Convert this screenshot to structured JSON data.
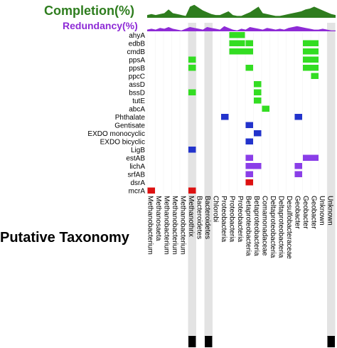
{
  "chart_data": {
    "type": "heatmap",
    "title_completion": "Completion(%)",
    "title_redundancy": "Redundancy(%)",
    "xlabel": "Putative Taxonomy",
    "genes": [
      "ahyA",
      "edbB",
      "cmdB",
      "ppsA",
      "ppsB",
      "ppcC",
      "assD",
      "bssD",
      "tutE",
      "abcA",
      "Phthalate",
      "Gentisate",
      "EXDO monocyclic",
      "EXDO bicyclic",
      "LigB",
      "estAB",
      "lichA",
      "srfAB",
      "dsrA",
      "mcrA"
    ],
    "taxa": [
      "Methanobacterium",
      "Methanosaeta",
      "Methanobacterium",
      "Methanobacterium",
      "Methanobacterium",
      "Methanothrix",
      "Bacteroidetes",
      "Bacteroidetes",
      "Chlorobi",
      "Proteobacteria",
      "Proteobacteria",
      "Proteobacteria",
      "Betaproteobacteria",
      "Betaproteobacteria",
      "Comamonadaceae",
      "Deltaproteobacteria",
      "Deltaproteobacteria",
      "Desulfobacteraceae",
      "Geobacter",
      "Geobacter",
      "Geobacter",
      "Unknown",
      "Unknown"
    ],
    "highlighted_taxa": [
      5,
      7,
      22
    ],
    "colors": {
      "completion": "#2e7d1e",
      "redundancy": "#8e2bd6",
      "green": "#33dd22",
      "blue": "#2233cc",
      "purple": "#8a3ee8",
      "red": "#dd1111",
      "highlight": "#e3e3e3"
    },
    "completion": [
      3,
      4,
      3,
      4,
      5,
      9,
      5,
      4,
      3,
      2,
      12,
      14,
      11,
      8,
      6,
      4,
      3,
      3,
      5,
      7,
      3,
      2,
      2,
      4,
      6,
      9,
      12,
      5,
      4,
      3,
      2,
      2,
      3,
      4,
      5,
      6,
      7,
      9,
      10,
      12,
      10,
      8,
      6,
      4,
      3
    ],
    "redundancy": [
      2,
      3,
      2,
      4,
      3,
      5,
      3,
      2,
      1,
      3,
      5,
      4,
      3,
      2,
      5,
      4,
      3,
      2,
      6,
      4,
      2,
      1,
      3,
      2,
      5,
      4,
      3,
      2,
      4,
      3,
      2,
      3,
      2,
      4,
      5,
      6,
      5,
      4,
      3,
      2,
      2,
      3,
      2,
      1,
      1
    ],
    "cells": [
      {
        "gene": 0,
        "taxon": 10,
        "span": 2,
        "color": "green"
      },
      {
        "gene": 1,
        "taxon": 10,
        "span": 2,
        "color": "green"
      },
      {
        "gene": 1,
        "taxon": 12,
        "span": 1,
        "color": "green"
      },
      {
        "gene": 1,
        "taxon": 19,
        "span": 2,
        "color": "green"
      },
      {
        "gene": 2,
        "taxon": 10,
        "span": 3,
        "color": "green"
      },
      {
        "gene": 2,
        "taxon": 19,
        "span": 2,
        "color": "green"
      },
      {
        "gene": 3,
        "taxon": 5,
        "span": 1,
        "color": "green"
      },
      {
        "gene": 3,
        "taxon": 19,
        "span": 2,
        "color": "green"
      },
      {
        "gene": 4,
        "taxon": 5,
        "span": 1,
        "color": "green"
      },
      {
        "gene": 4,
        "taxon": 12,
        "span": 1,
        "color": "green"
      },
      {
        "gene": 4,
        "taxon": 19,
        "span": 2,
        "color": "green"
      },
      {
        "gene": 5,
        "taxon": 20,
        "span": 1,
        "color": "green"
      },
      {
        "gene": 6,
        "taxon": 13,
        "span": 1,
        "color": "green"
      },
      {
        "gene": 7,
        "taxon": 5,
        "span": 1,
        "color": "green"
      },
      {
        "gene": 7,
        "taxon": 13,
        "span": 1,
        "color": "green"
      },
      {
        "gene": 8,
        "taxon": 13,
        "span": 1,
        "color": "green"
      },
      {
        "gene": 9,
        "taxon": 14,
        "span": 1,
        "color": "green"
      },
      {
        "gene": 10,
        "taxon": 9,
        "span": 1,
        "color": "blue"
      },
      {
        "gene": 10,
        "taxon": 18,
        "span": 1,
        "color": "blue"
      },
      {
        "gene": 11,
        "taxon": 12,
        "span": 1,
        "color": "blue"
      },
      {
        "gene": 12,
        "taxon": 13,
        "span": 1,
        "color": "blue"
      },
      {
        "gene": 13,
        "taxon": 12,
        "span": 1,
        "color": "blue"
      },
      {
        "gene": 14,
        "taxon": 5,
        "span": 1,
        "color": "blue"
      },
      {
        "gene": 15,
        "taxon": 12,
        "span": 1,
        "color": "purple"
      },
      {
        "gene": 15,
        "taxon": 19,
        "span": 2,
        "color": "purple"
      },
      {
        "gene": 16,
        "taxon": 12,
        "span": 2,
        "color": "purple"
      },
      {
        "gene": 16,
        "taxon": 18,
        "span": 1,
        "color": "purple"
      },
      {
        "gene": 17,
        "taxon": 12,
        "span": 1,
        "color": "purple"
      },
      {
        "gene": 17,
        "taxon": 18,
        "span": 1,
        "color": "purple"
      },
      {
        "gene": 18,
        "taxon": 12,
        "span": 1,
        "color": "red"
      },
      {
        "gene": 19,
        "taxon": 0,
        "span": 1,
        "color": "red"
      },
      {
        "gene": 19,
        "taxon": 5,
        "span": 1,
        "color": "red"
      }
    ]
  }
}
